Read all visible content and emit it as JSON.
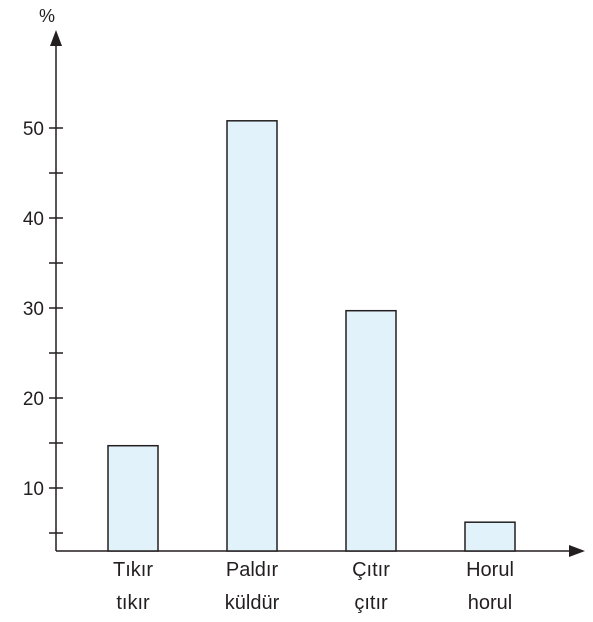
{
  "chart_data": {
    "type": "bar",
    "ylabel": "%",
    "xlabel": "",
    "categories": [
      [
        "Tıkır",
        "tıkır"
      ],
      [
        "Paldır",
        "küldür"
      ],
      [
        "Çıtır",
        "çıtır"
      ],
      [
        "Horul",
        "horul"
      ]
    ],
    "values": [
      14.7,
      50.8,
      29.7,
      6.2
    ],
    "ylim": [
      3,
      55
    ],
    "yticks_labeled": [
      10,
      20,
      30,
      40,
      50
    ],
    "yticks_minor": [
      5,
      15,
      25,
      35,
      45
    ],
    "grid": false,
    "colors": {
      "bar_fill": "#e1f2fb",
      "bar_stroke": "#231f20",
      "axis": "#231f20"
    }
  }
}
